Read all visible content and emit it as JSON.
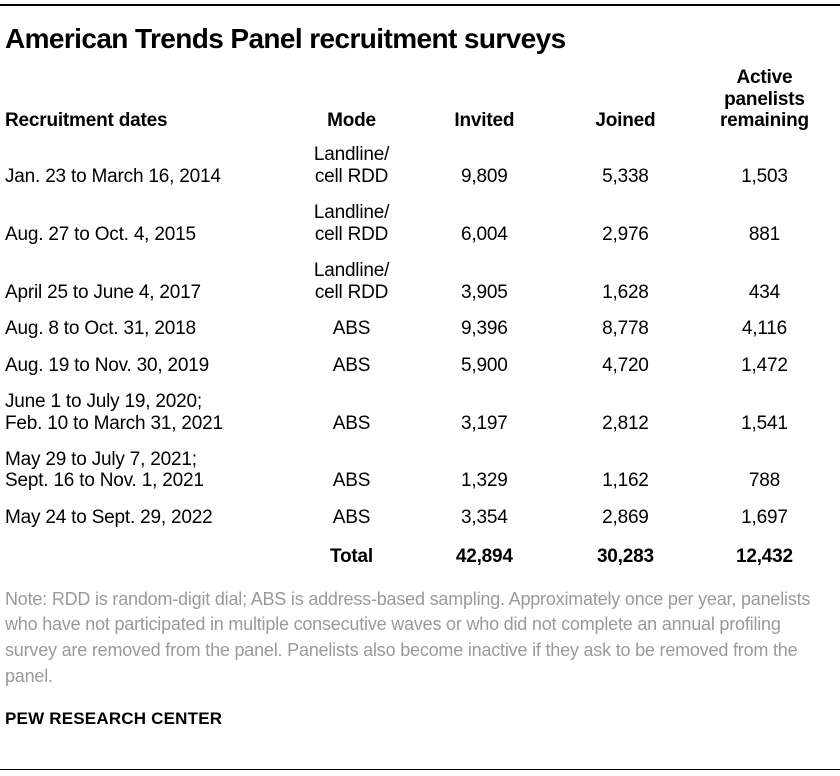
{
  "page": {
    "title": "American Trends Panel recruitment surveys",
    "note": "Note: RDD is random-digit dial; ABS is address-based sampling. Approximately once per year, panelists who have not participated in multiple consecutive waves or who did not complete an annual profiling survey are removed from the panel. Panelists also become inactive if they ask to be removed from the panel.",
    "source": "PEW RESEARCH CENTER",
    "colors": {
      "text": "#000000",
      "note_text": "#9a9a9b",
      "rule": "#000000",
      "background": "#ffffff"
    }
  },
  "chart_data": {
    "type": "table",
    "title": "American Trends Panel recruitment surveys",
    "columns": [
      "Recruitment dates",
      "Mode",
      "Invited",
      "Joined",
      "Active panelists remaining"
    ],
    "rows": [
      [
        "Jan. 23 to March 16, 2014",
        "Landline/\ncell RDD",
        "9,809",
        "5,338",
        "1,503"
      ],
      [
        "Aug. 27 to Oct. 4, 2015",
        "Landline/\ncell RDD",
        "6,004",
        "2,976",
        "881"
      ],
      [
        "April 25 to June 4, 2017",
        "Landline/\ncell RDD",
        "3,905",
        "1,628",
        "434"
      ],
      [
        "Aug. 8 to Oct. 31, 2018",
        "ABS",
        "9,396",
        "8,778",
        "4,116"
      ],
      [
        "Aug. 19 to Nov. 30, 2019",
        "ABS",
        "5,900",
        "4,720",
        "1,472"
      ],
      [
        "June 1 to July 19, 2020;\nFeb. 10 to March 31, 2021",
        "ABS",
        "3,197",
        "2,812",
        "1,541"
      ],
      [
        "May 29 to July 7, 2021;\nSept. 16 to Nov. 1, 2021",
        "ABS",
        "1,329",
        "1,162",
        "788"
      ],
      [
        "May 24 to Sept. 29, 2022",
        "ABS",
        "3,354",
        "2,869",
        "1,697"
      ]
    ],
    "total_row": [
      "",
      "Total",
      "42,894",
      "30,283",
      "12,432"
    ],
    "layout": {
      "first_column_align": "left",
      "other_columns_align": "center",
      "column_widths_pct": [
        34.5,
        14.5,
        17.5,
        16.5,
        17
      ]
    }
  }
}
